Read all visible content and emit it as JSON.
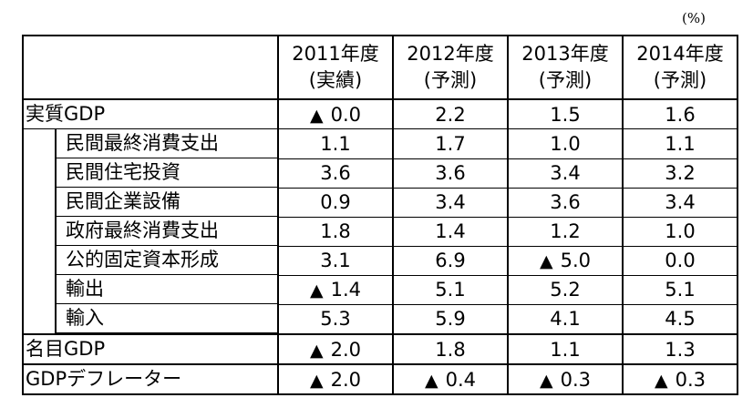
{
  "unit_label": "(%)",
  "columns": [
    {
      "year": "2011年度",
      "type": "(実績)"
    },
    {
      "year": "2012年度",
      "type": "(予測)"
    },
    {
      "year": "2013年度",
      "type": "(予測)"
    },
    {
      "year": "2014年度",
      "type": "(予測)"
    }
  ],
  "negative_marker": "▲",
  "rows": [
    {
      "label": "実質GDP",
      "values": [
        "0.0",
        "2.2",
        "1.5",
        "1.6"
      ],
      "negative": [
        true,
        false,
        false,
        false
      ]
    },
    {
      "label": "民間最終消費支出",
      "values": [
        "1.1",
        "1.7",
        "1.0",
        "1.1"
      ],
      "negative": [
        false,
        false,
        false,
        false
      ]
    },
    {
      "label": "民間住宅投資",
      "values": [
        "3.6",
        "3.6",
        "3.4",
        "3.2"
      ],
      "negative": [
        false,
        false,
        false,
        false
      ]
    },
    {
      "label": "民間企業設備",
      "values": [
        "0.9",
        "3.4",
        "3.6",
        "3.4"
      ],
      "negative": [
        false,
        false,
        false,
        false
      ]
    },
    {
      "label": "政府最終消費支出",
      "values": [
        "1.8",
        "1.4",
        "1.2",
        "1.0"
      ],
      "negative": [
        false,
        false,
        false,
        false
      ]
    },
    {
      "label": "公的固定資本形成",
      "values": [
        "3.1",
        "6.9",
        "5.0",
        "0.0"
      ],
      "negative": [
        false,
        false,
        true,
        false
      ]
    },
    {
      "label": "輸出",
      "values": [
        "1.4",
        "5.1",
        "5.2",
        "5.1"
      ],
      "negative": [
        true,
        false,
        false,
        false
      ]
    },
    {
      "label": "輸入",
      "values": [
        "5.3",
        "5.9",
        "4.1",
        "4.5"
      ],
      "negative": [
        false,
        false,
        false,
        false
      ]
    },
    {
      "label": "名目GDP",
      "values": [
        "2.0",
        "1.8",
        "1.1",
        "1.3"
      ],
      "negative": [
        true,
        false,
        false,
        false
      ]
    },
    {
      "label": "GDPデフレーター",
      "values": [
        "2.0",
        "0.4",
        "0.3",
        "0.3"
      ],
      "negative": [
        true,
        true,
        true,
        true
      ]
    }
  ]
}
